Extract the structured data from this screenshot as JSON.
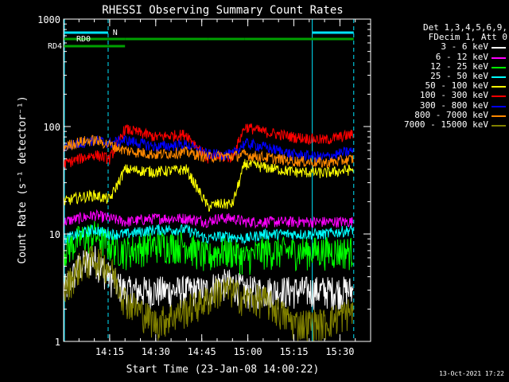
{
  "chart_data": {
    "type": "line",
    "title": "RHESSI Observing Summary Count Rates",
    "xlabel": "Start Time (23-Jan-08 14:00:22)",
    "ylabel": "Count Rate (s⁻¹ detector⁻¹)",
    "yscale": "log",
    "ylim": [
      1,
      1000
    ],
    "xlim_minutes": [
      0,
      100
    ],
    "x_ticks": [
      "14:15",
      "14:30",
      "14:45",
      "15:00",
      "15:15",
      "15:30"
    ],
    "x_tick_minutes": [
      15,
      30,
      45,
      60,
      75,
      90
    ],
    "y_ticks": [
      "1",
      "10",
      "100",
      "1000"
    ],
    "legend_header": [
      "Det 1,3,4,5,6,9,",
      "FDecim 1, Att 0"
    ],
    "legend_position": "right",
    "markers": {
      "N_label": "N",
      "RD0_label": "RD0",
      "RD4_label": "RD4",
      "vertical_solid_minutes": [
        81
      ],
      "vertical_dashed_minutes": [
        14.5,
        94.5
      ]
    },
    "segments": {
      "night_spans_minutes": [
        [
          0,
          14.5
        ],
        [
          81,
          94.5
        ]
      ],
      "rd0_spans_minutes": [
        [
          0,
          20
        ],
        [
          20,
          47
        ],
        [
          47,
          59
        ],
        [
          59,
          94.5
        ]
      ],
      "rd4_spans_minutes": [
        [
          0,
          20
        ]
      ]
    },
    "series": [
      {
        "name": "3 - 6 keV",
        "color": "#ffffff",
        "x": [
          0,
          5,
          10,
          15,
          20,
          30,
          40,
          47,
          50,
          55,
          59,
          65,
          75,
          85,
          94.5
        ],
        "values": [
          3,
          5,
          6,
          4,
          3,
          3,
          3,
          3,
          3.5,
          3.5,
          3,
          3,
          3,
          3,
          3
        ]
      },
      {
        "name": "6 - 12 keV",
        "color": "#ff00ff",
        "x": [
          0,
          5,
          10,
          15,
          20,
          30,
          40,
          47,
          50,
          55,
          59,
          65,
          75,
          85,
          94.5
        ],
        "values": [
          13,
          14,
          15,
          14,
          13,
          14,
          14,
          13,
          14,
          14,
          13,
          13,
          13,
          13,
          13
        ]
      },
      {
        "name": "12 - 25 keV",
        "color": "#00ff00",
        "x": [
          0,
          5,
          10,
          15,
          20,
          30,
          40,
          47,
          50,
          55,
          59,
          65,
          75,
          85,
          94.5
        ],
        "values": [
          7,
          9,
          10,
          8,
          7,
          8,
          8,
          6,
          7,
          7,
          6,
          7,
          7,
          7,
          7
        ]
      },
      {
        "name": "25 - 50 keV",
        "color": "#00ffff",
        "x": [
          0,
          5,
          10,
          15,
          20,
          30,
          40,
          47,
          50,
          55,
          59,
          65,
          75,
          85,
          94.5
        ],
        "values": [
          9,
          10,
          11,
          10,
          10,
          11,
          11,
          9,
          9.5,
          9.5,
          9,
          10,
          10,
          10,
          11
        ]
      },
      {
        "name": "50 - 100 keV",
        "color": "#ffff00",
        "x": [
          0,
          5,
          10,
          15,
          20,
          30,
          40,
          47,
          50,
          55,
          59,
          65,
          75,
          85,
          94.5
        ],
        "values": [
          20,
          22,
          23,
          21,
          40,
          38,
          40,
          18,
          19,
          19,
          45,
          42,
          38,
          37,
          40
        ]
      },
      {
        "name": "100 - 300 keV",
        "color": "#ff0000",
        "x": [
          0,
          5,
          10,
          15,
          20,
          30,
          40,
          47,
          50,
          55,
          59,
          65,
          75,
          85,
          94.5
        ],
        "values": [
          45,
          50,
          55,
          50,
          95,
          80,
          85,
          50,
          52,
          52,
          100,
          90,
          80,
          75,
          85
        ]
      },
      {
        "name": "300 - 800 keV",
        "color": "#0000ff",
        "x": [
          0,
          5,
          10,
          15,
          20,
          30,
          40,
          47,
          50,
          55,
          59,
          65,
          75,
          85,
          94.5
        ],
        "values": [
          65,
          70,
          75,
          70,
          75,
          65,
          68,
          55,
          55,
          55,
          70,
          65,
          55,
          52,
          60
        ]
      },
      {
        "name": "800 - 7000 keV",
        "color": "#ff8800",
        "x": [
          0,
          5,
          10,
          15,
          20,
          30,
          40,
          47,
          50,
          55,
          59,
          65,
          75,
          85,
          94.5
        ],
        "values": [
          65,
          72,
          75,
          68,
          60,
          55,
          58,
          52,
          53,
          53,
          55,
          52,
          48,
          46,
          50
        ]
      },
      {
        "name": "7000 - 15000 keV",
        "color": "#808000",
        "x": [
          0,
          5,
          10,
          15,
          20,
          30,
          40,
          47,
          50,
          55,
          59,
          65,
          75,
          85,
          94.5
        ],
        "values": [
          3,
          5,
          6,
          5,
          2.5,
          1.5,
          2,
          2.5,
          3,
          3,
          2.5,
          2.5,
          1.5,
          1.5,
          2
        ]
      }
    ],
    "timestamp": "13-Oct-2021 17:22"
  }
}
